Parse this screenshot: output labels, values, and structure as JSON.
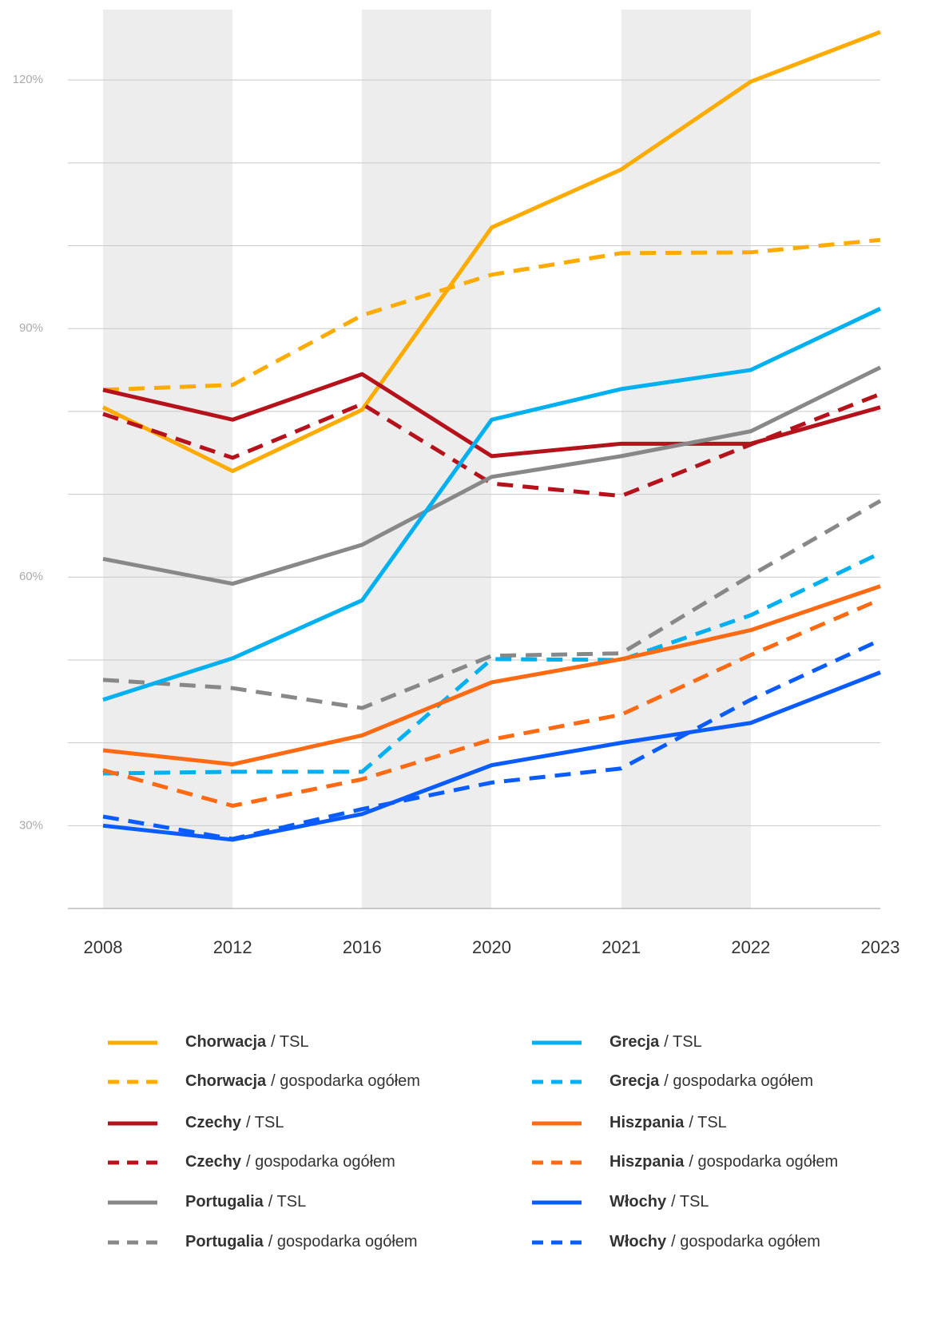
{
  "chart_data": {
    "type": "line",
    "categories": [
      "2008",
      "2012",
      "2016",
      "2020",
      "2021",
      "2022",
      "2023"
    ],
    "ylim": [
      20,
      128.5
    ],
    "yticks": [
      {
        "value": 30,
        "label": "30%"
      },
      {
        "value": 60,
        "label": "60%"
      },
      {
        "value": 90,
        "label": "90%"
      },
      {
        "value": 120,
        "label": "120%"
      }
    ],
    "ygrid": [
      20,
      30,
      40,
      50,
      60,
      70,
      80,
      90,
      100,
      110,
      120
    ],
    "grid": true,
    "series": [
      {
        "name": "Chorwacja",
        "variant": "/ TSL",
        "color": "#ffab00",
        "dash": false,
        "values": [
          80.5,
          72.8,
          80.2,
          102.2,
          109.2,
          119.8,
          125.8
        ]
      },
      {
        "name": "Chorwacja",
        "variant": "/ gospodarka ogółem",
        "color": "#ffab00",
        "dash": true,
        "values": [
          82.6,
          83.2,
          91.6,
          96.5,
          99.1,
          99.2,
          100.7
        ]
      },
      {
        "name": "Czechy",
        "variant": "/ TSL",
        "color": "#b5121b",
        "dash": false,
        "values": [
          82.6,
          79.0,
          84.5,
          74.6,
          76.1,
          76.1,
          80.5
        ]
      },
      {
        "name": "Czechy",
        "variant": "/ gospodarka ogółem",
        "color": "#b5121b",
        "dash": true,
        "values": [
          79.7,
          74.4,
          80.9,
          71.3,
          69.8,
          76.0,
          82.1
        ]
      },
      {
        "name": "Portugalia",
        "variant": "/ TSL",
        "color": "#888888",
        "dash": false,
        "values": [
          62.2,
          59.2,
          63.9,
          72.1,
          74.6,
          77.6,
          85.3
        ]
      },
      {
        "name": "Portugalia",
        "variant": "/ gospodarka ogółem",
        "color": "#888888",
        "dash": true,
        "values": [
          47.6,
          46.6,
          44.2,
          50.5,
          50.8,
          60.2,
          69.2
        ]
      },
      {
        "name": "Grecja",
        "variant": "/ TSL",
        "color": "#00b0f0",
        "dash": false,
        "values": [
          45.2,
          50.2,
          57.2,
          79.0,
          82.7,
          85.0,
          92.4
        ]
      },
      {
        "name": "Grecja",
        "variant": "/ gospodarka ogółem",
        "color": "#00b0f0",
        "dash": true,
        "values": [
          36.3,
          36.5,
          36.5,
          50.1,
          50.0,
          55.4,
          62.9
        ]
      },
      {
        "name": "Hiszpania",
        "variant": "/ TSL",
        "color": "#ff6a13",
        "dash": false,
        "values": [
          39.1,
          37.4,
          40.9,
          47.3,
          50.1,
          53.6,
          58.9
        ]
      },
      {
        "name": "Hiszpania",
        "variant": "/ gospodarka ogółem",
        "color": "#ff6a13",
        "dash": true,
        "values": [
          36.7,
          32.4,
          35.6,
          40.4,
          43.4,
          50.6,
          57.3
        ]
      },
      {
        "name": "Włochy",
        "variant": "/ TSL",
        "color": "#0a5cff",
        "dash": false,
        "values": [
          30.0,
          28.3,
          31.4,
          37.3,
          40.0,
          42.4,
          48.5
        ]
      },
      {
        "name": "Włochy",
        "variant": "/ gospodarka ogółem",
        "color": "#0a5cff",
        "dash": true,
        "values": [
          31.1,
          28.4,
          32.0,
          35.2,
          36.9,
          45.2,
          52.4
        ]
      }
    ]
  }
}
